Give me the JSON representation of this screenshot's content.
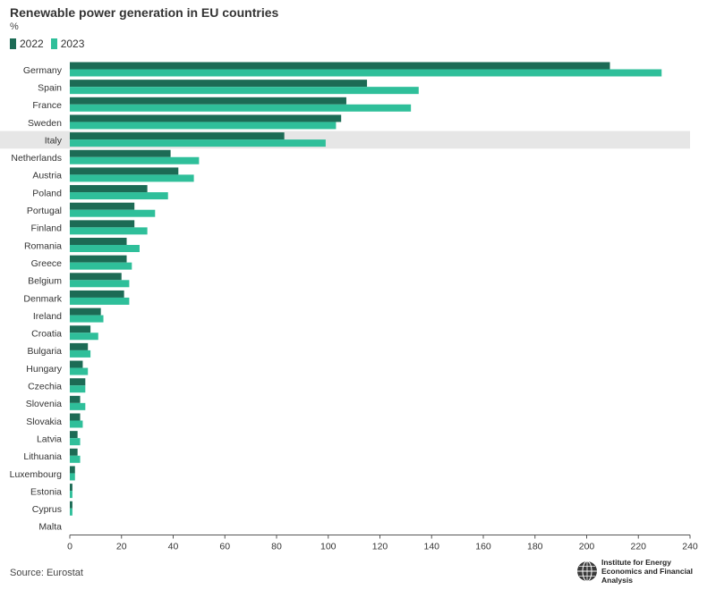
{
  "header": {
    "title": "Renewable power generation in EU countries",
    "unit": "%"
  },
  "legend": {
    "items": [
      {
        "label": "2022",
        "color": "#1c6b55"
      },
      {
        "label": "2023",
        "color": "#2fbf9a"
      }
    ]
  },
  "chart_data": {
    "type": "bar",
    "orientation": "horizontal",
    "title": "Renewable power generation in EU countries",
    "ylabel": "%",
    "xlim": [
      0,
      240
    ],
    "x_ticks": [
      0,
      20,
      40,
      60,
      80,
      100,
      120,
      140,
      160,
      180,
      200,
      220,
      240
    ],
    "highlighted_category": "Italy",
    "highlight_color": "#e6e6e6",
    "categories": [
      "Germany",
      "Spain",
      "France",
      "Sweden",
      "Italy",
      "Netherlands",
      "Austria",
      "Poland",
      "Portugal",
      "Finland",
      "Romania",
      "Greece",
      "Belgium",
      "Denmark",
      "Ireland",
      "Croatia",
      "Bulgaria",
      "Hungary",
      "Czechia",
      "Slovenia",
      "Slovakia",
      "Latvia",
      "Lithuania",
      "Luxembourg",
      "Estonia",
      "Cyprus",
      "Malta"
    ],
    "series": [
      {
        "name": "2022",
        "color": "#1c6b55",
        "values": [
          209,
          115,
          107,
          105,
          83,
          39,
          42,
          30,
          25,
          25,
          22,
          22,
          20,
          21,
          12,
          8,
          7,
          5,
          6,
          4,
          4,
          3,
          3,
          2,
          1,
          1,
          0
        ]
      },
      {
        "name": "2023",
        "color": "#2fbf9a",
        "values": [
          229,
          135,
          132,
          103,
          99,
          50,
          48,
          38,
          33,
          30,
          27,
          24,
          23,
          23,
          13,
          11,
          8,
          7,
          6,
          6,
          5,
          4,
          4,
          2,
          1,
          1,
          0
        ]
      }
    ],
    "legend": "top-left",
    "grid": false
  },
  "footer": {
    "source": "Source: Eurostat",
    "logo_text": "Institute for Energy Economics and Financial Analysis",
    "logo_icon": "globe-icon"
  }
}
